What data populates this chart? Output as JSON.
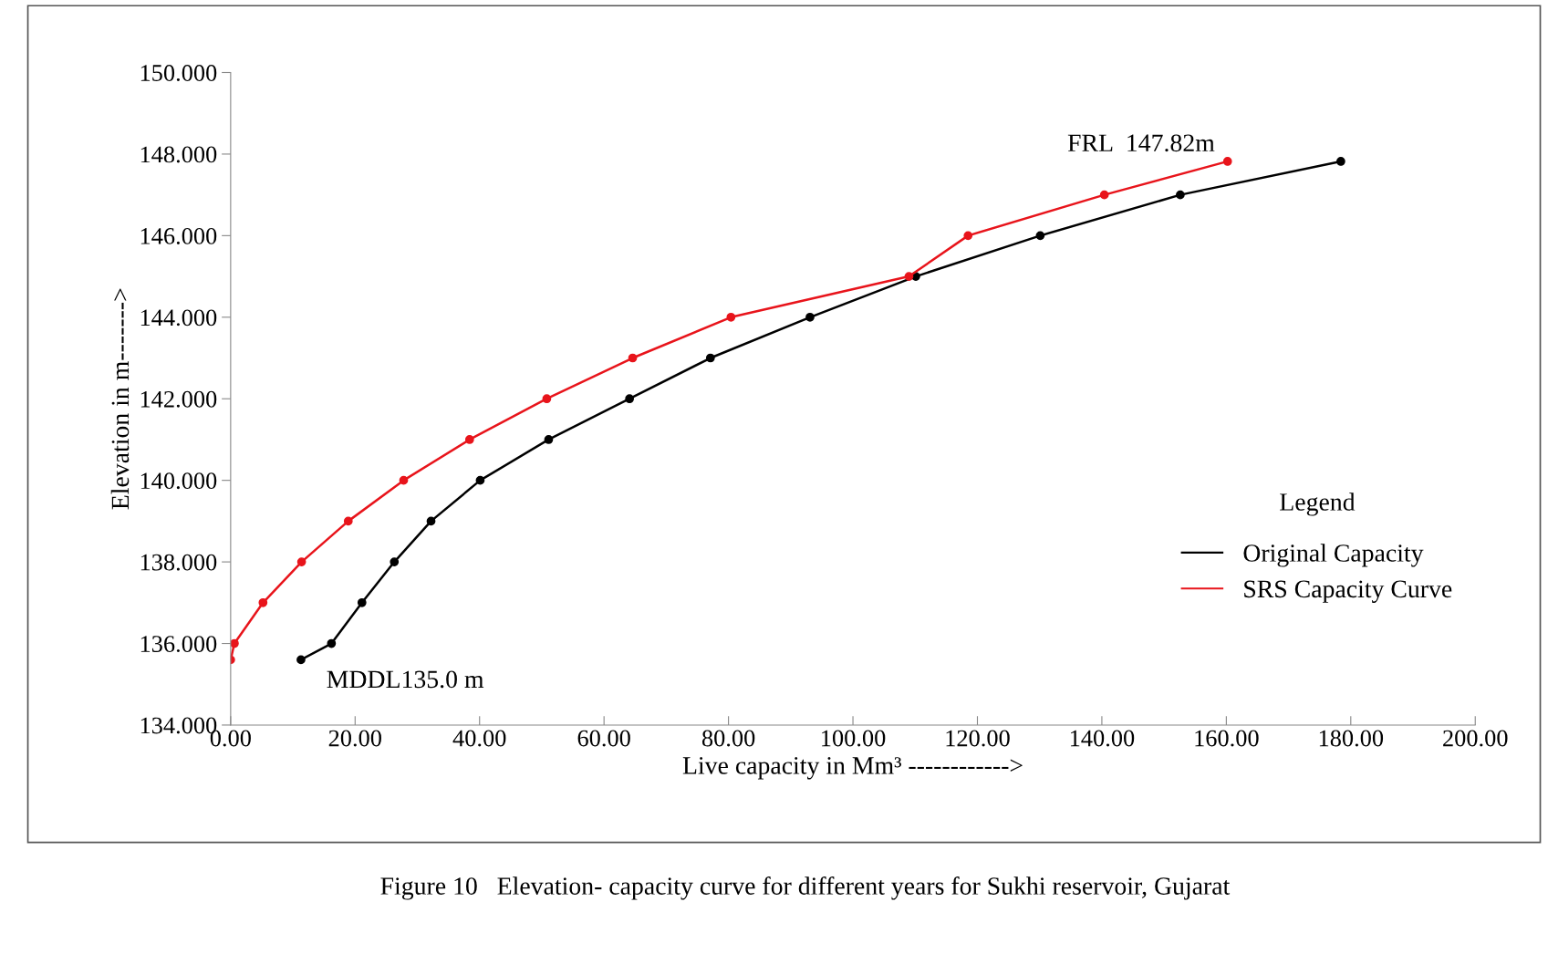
{
  "chart_data": {
    "type": "line",
    "xlabel": "Live capacity in Mm³ ------------>",
    "ylabel": "Elevation in m------->",
    "xlim": [
      0,
      200
    ],
    "xticks": [
      {
        "value": 0,
        "label": "0.00"
      },
      {
        "value": 20,
        "label": "20.00"
      },
      {
        "value": 40,
        "label": "40.00"
      },
      {
        "value": 60,
        "label": "60.00"
      },
      {
        "value": 80,
        "label": "80.00"
      },
      {
        "value": 100,
        "label": "100.00"
      },
      {
        "value": 120,
        "label": "120.00"
      },
      {
        "value": 140,
        "label": "140.00"
      },
      {
        "value": 160,
        "label": "160.00"
      },
      {
        "value": 180,
        "label": "180.00"
      },
      {
        "value": 200,
        "label": "200.00"
      }
    ],
    "ylim": [
      134,
      150
    ],
    "yticks": [
      {
        "value": 134,
        "label": "134.000"
      },
      {
        "value": 136,
        "label": "136.000"
      },
      {
        "value": 138,
        "label": "138.000"
      },
      {
        "value": 140,
        "label": "140.000"
      },
      {
        "value": 142,
        "label": "142.000"
      },
      {
        "value": 144,
        "label": "144.000"
      },
      {
        "value": 146,
        "label": "146.000"
      },
      {
        "value": 148,
        "label": "148.000"
      },
      {
        "value": 150,
        "label": "150.000"
      }
    ],
    "series": [
      {
        "name": "Original Capacity",
        "color": "#000000",
        "x": [
          11.3,
          16.2,
          21.1,
          26.3,
          32.2,
          40.1,
          51.1,
          64.1,
          77.1,
          93.1,
          110.1,
          130.1,
          152.6,
          178.4
        ],
        "values": [
          135.6,
          136,
          137,
          138,
          139,
          140,
          141,
          142,
          143,
          144,
          145,
          146,
          147,
          147.82
        ]
      },
      {
        "name": "SRS Capacity Curve",
        "color": "#e8141b",
        "x": [
          0,
          0.6,
          5.2,
          11.4,
          18.9,
          27.8,
          38.4,
          50.8,
          64.6,
          80.4,
          109.0,
          118.5,
          140.4,
          160.2
        ],
        "values": [
          135.6,
          136,
          137,
          138,
          139,
          140,
          141,
          142,
          143,
          144,
          145,
          146,
          147,
          147.82
        ]
      }
    ],
    "marker": "circle",
    "line_style": "solid",
    "grid": false,
    "legend": "right",
    "legend_title": "Legend",
    "annotations": [
      {
        "text": "MDDL135.0 m",
        "x": 11.3,
        "y": 135.6
      },
      {
        "text": "FRL  147.82m",
        "x": 160.2,
        "y": 147.82
      },
      "Figure 10   Elevation- capacity curve for different years for Sukhi reservoir, Gujarat"
    ]
  }
}
